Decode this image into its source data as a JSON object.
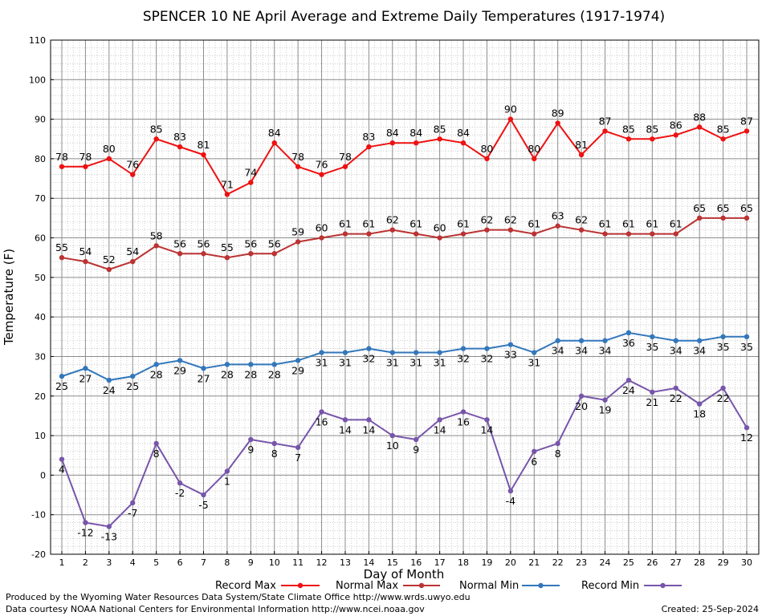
{
  "chart_data": {
    "type": "line",
    "title": "SPENCER 10 NE April Average and Extreme Daily Temperatures (1917-1974)",
    "xlabel": "Day of Month",
    "ylabel": "Temperature (F)",
    "ylim": [
      -20,
      110
    ],
    "xlim": [
      1,
      30
    ],
    "y_ticks": [
      -20,
      -10,
      0,
      10,
      20,
      30,
      40,
      50,
      60,
      70,
      80,
      90,
      100,
      110
    ],
    "x": [
      1,
      2,
      3,
      4,
      5,
      6,
      7,
      8,
      9,
      10,
      11,
      12,
      13,
      14,
      15,
      16,
      17,
      18,
      19,
      20,
      21,
      22,
      23,
      24,
      25,
      26,
      27,
      28,
      29,
      30
    ],
    "grid": true,
    "legend_position": "bottom",
    "series": [
      {
        "name": "Record Max",
        "color": "#ee1111",
        "values": [
          78,
          78,
          80,
          76,
          85,
          83,
          81,
          71,
          74,
          84,
          78,
          76,
          78,
          83,
          84,
          84,
          85,
          84,
          80,
          90,
          80,
          89,
          81,
          87,
          85,
          85,
          86,
          88,
          85,
          87
        ]
      },
      {
        "name": "Normal Max",
        "color": "#bb3333",
        "values": [
          55,
          54,
          52,
          54,
          58,
          56,
          56,
          55,
          56,
          56,
          59,
          60,
          61,
          61,
          62,
          61,
          60,
          61,
          62,
          62,
          61,
          63,
          62,
          61,
          61,
          61,
          61,
          65,
          65,
          65
        ]
      },
      {
        "name": "Normal Min",
        "color": "#3377bb",
        "values": [
          25,
          27,
          24,
          25,
          28,
          29,
          27,
          28,
          28,
          28,
          29,
          31,
          31,
          32,
          31,
          31,
          31,
          32,
          32,
          33,
          31,
          34,
          34,
          34,
          36,
          35,
          34,
          34,
          35,
          35
        ]
      },
      {
        "name": "Record Min",
        "color": "#7755aa",
        "values": [
          4,
          -12,
          -13,
          -7,
          8,
          -2,
          -5,
          1,
          9,
          8,
          7,
          16,
          14,
          14,
          10,
          9,
          14,
          16,
          14,
          -4,
          6,
          8,
          20,
          19,
          24,
          21,
          22,
          18,
          22,
          12
        ]
      }
    ]
  },
  "footer": {
    "line1": "Produced by the Wyoming Water Resources Data System/State Climate Office http://www.wrds.uwyo.edu",
    "line2": "Data courtesy NOAA National Centers for Environmental Information http://www.ncei.noaa.gov",
    "created": "Created: 25-Sep-2024"
  }
}
